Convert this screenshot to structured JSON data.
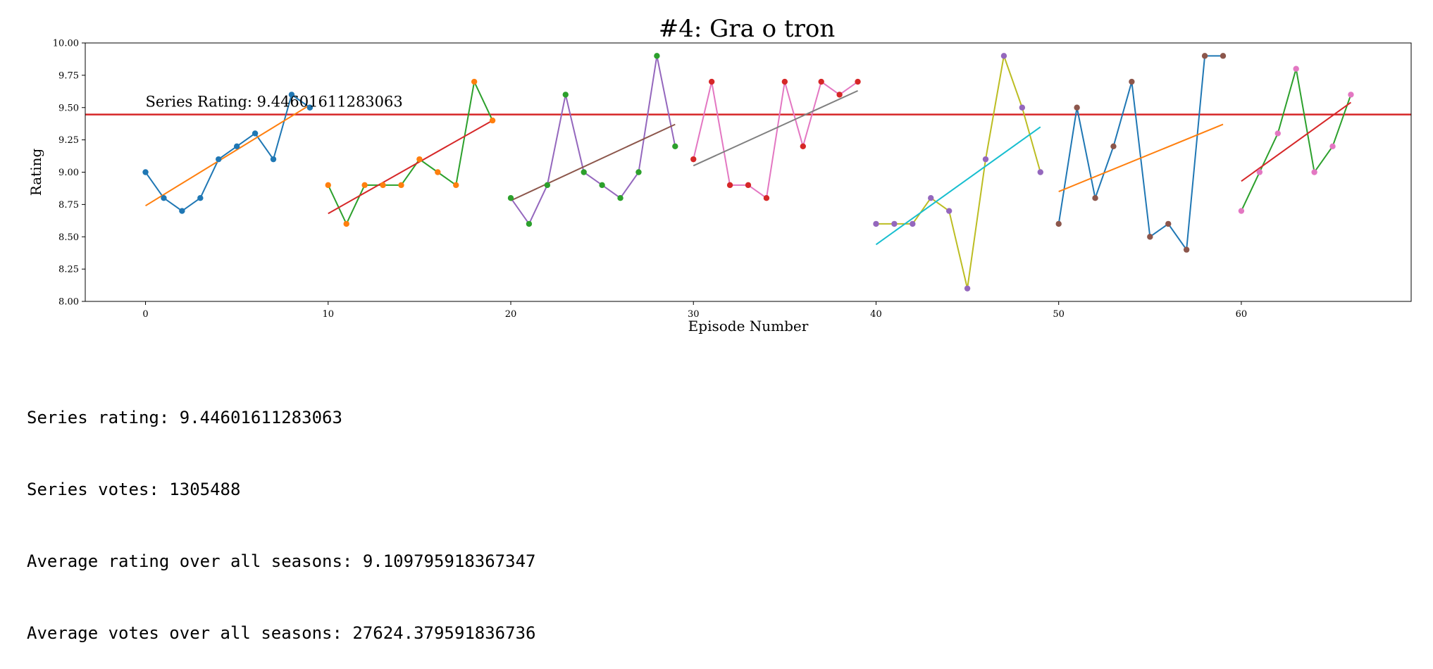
{
  "chart_data": {
    "type": "line",
    "title": "#4: Gra o tron",
    "xlabel": "Episode Number",
    "ylabel": "Rating",
    "xlim": [
      -3.3,
      69.3
    ],
    "ylim": [
      8.0,
      10.0
    ],
    "xticks": [
      0,
      10,
      20,
      30,
      40,
      50,
      60
    ],
    "yticks": [
      8.0,
      8.25,
      8.5,
      8.75,
      9.0,
      9.25,
      9.5,
      9.75,
      10.0
    ],
    "ytick_labels": [
      "8.00",
      "8.25",
      "8.50",
      "8.75",
      "9.00",
      "9.25",
      "9.50",
      "9.75",
      "10.00"
    ],
    "grid": false,
    "series_rating": 9.44601611283063,
    "annotation": "Series Rating: 9.44601611283063",
    "seasons": [
      {
        "x": [
          0,
          1,
          2,
          3,
          4,
          5,
          6,
          7,
          8,
          9
        ],
        "y": [
          9.0,
          8.8,
          8.7,
          8.8,
          9.1,
          9.2,
          9.3,
          9.1,
          9.6,
          9.5
        ],
        "line_color": "#1f77b4",
        "marker_color": "#1f77b4",
        "trend": [
          8.74,
          9.52
        ],
        "trend_color": "#ff7f0e"
      },
      {
        "x": [
          10,
          11,
          12,
          13,
          14,
          15,
          16,
          17,
          18,
          19
        ],
        "y": [
          8.9,
          8.6,
          8.9,
          8.9,
          8.9,
          9.1,
          9.0,
          8.9,
          9.7,
          9.4
        ],
        "line_color": "#2ca02c",
        "marker_color": "#ff7f0e",
        "trend": [
          8.68,
          9.4
        ],
        "trend_color": "#d62728"
      },
      {
        "x": [
          20,
          21,
          22,
          23,
          24,
          25,
          26,
          27,
          28,
          29
        ],
        "y": [
          8.8,
          8.6,
          8.9,
          9.6,
          9.0,
          8.9,
          8.8,
          9.0,
          9.9,
          9.2
        ],
        "line_color": "#9467bd",
        "marker_color": "#2ca02c",
        "trend": [
          8.78,
          9.37
        ],
        "trend_color": "#8c564b"
      },
      {
        "x": [
          30,
          31,
          32,
          33,
          34,
          35,
          36,
          37,
          38,
          39
        ],
        "y": [
          9.1,
          9.7,
          8.9,
          8.9,
          8.8,
          9.7,
          9.2,
          9.7,
          9.6,
          9.7
        ],
        "line_color": "#e377c2",
        "marker_color": "#d62728",
        "trend": [
          9.05,
          9.63
        ],
        "trend_color": "#7f7f7f"
      },
      {
        "x": [
          40,
          41,
          42,
          43,
          44,
          45,
          46,
          47,
          48,
          49
        ],
        "y": [
          8.6,
          8.6,
          8.6,
          8.8,
          8.7,
          8.1,
          9.1,
          9.9,
          9.5,
          9.0
        ],
        "line_color": "#bcbd22",
        "marker_color": "#9467bd",
        "trend": [
          8.44,
          9.35
        ],
        "trend_color": "#17becf"
      },
      {
        "x": [
          50,
          51,
          52,
          53,
          54,
          55,
          56,
          57,
          58,
          59
        ],
        "y": [
          8.6,
          9.5,
          8.8,
          9.2,
          9.7,
          8.5,
          8.6,
          8.4,
          9.9,
          9.9
        ],
        "line_color": "#1f77b4",
        "marker_color": "#8c564b",
        "trend": [
          8.85,
          9.37
        ],
        "trend_color": "#ff7f0e"
      },
      {
        "x": [
          60,
          61,
          62,
          63,
          64,
          65,
          66
        ],
        "y": [
          8.7,
          9.0,
          9.3,
          9.8,
          9.0,
          9.2,
          9.6
        ],
        "line_color": "#2ca02c",
        "marker_color": "#e377c2",
        "trend": [
          8.93,
          9.54
        ],
        "trend_color": "#d62728"
      }
    ],
    "hline_color": "#d62728"
  },
  "output": {
    "series_rating": "Series rating: 9.44601611283063",
    "series_votes": "Series votes: 1305488",
    "avg_rating": "Average rating over all seasons: 9.109795918367347",
    "avg_votes": "Average votes over all seasons: 27624.379591836736"
  }
}
